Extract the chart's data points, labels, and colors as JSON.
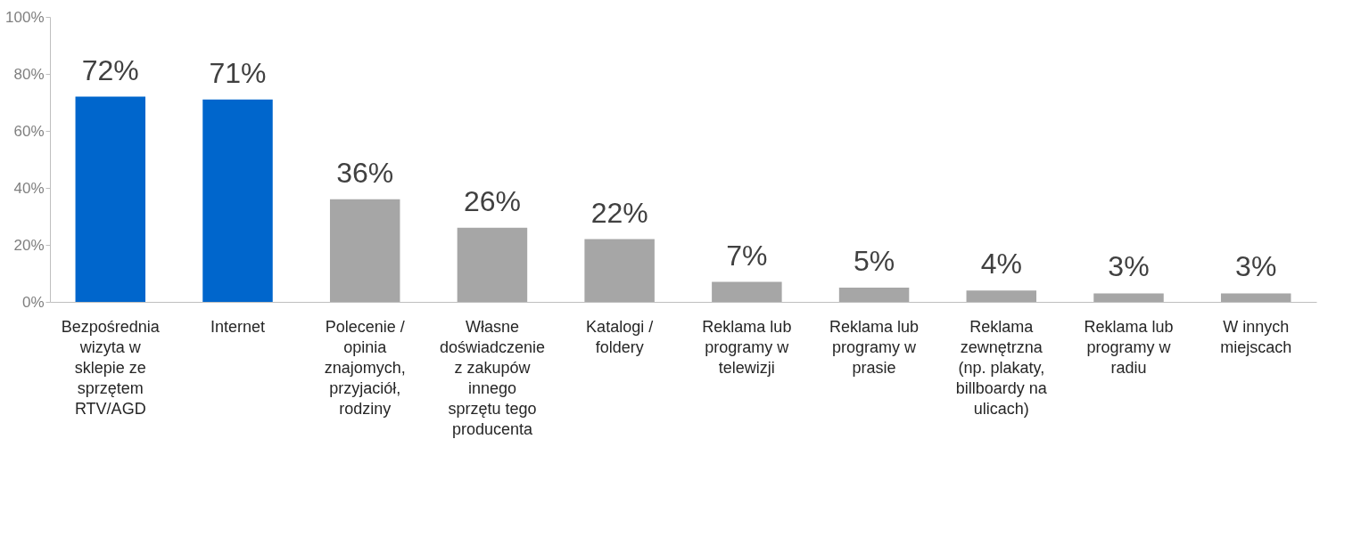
{
  "chart_data": {
    "type": "bar",
    "categories": [
      "Bezpośrednia wizyta w sklepie ze sprzętem RTV/AGD",
      "Internet",
      "Polecenie / opinia znajomych, przyjaciół, rodziny",
      "Własne doświadczenie z zakupów innego sprzętu tego producenta",
      "Katalogi / foldery",
      "Reklama lub programy w telewizji",
      "Reklama lub programy w prasie",
      "Reklama zewnętrzna (np. plakaty, billboardy na ulicach)",
      "Reklama lub programy w radiu",
      "W innych miejscach"
    ],
    "values": [
      72,
      71,
      36,
      26,
      22,
      7,
      5,
      4,
      3,
      3
    ],
    "value_labels": [
      "72%",
      "71%",
      "36%",
      "26%",
      "22%",
      "7%",
      "5%",
      "4%",
      "3%",
      "3%"
    ],
    "colors": [
      "#0066cc",
      "#0066cc",
      "#a6a6a6",
      "#a6a6a6",
      "#a6a6a6",
      "#a6a6a6",
      "#a6a6a6",
      "#a6a6a6",
      "#a6a6a6",
      "#a6a6a6"
    ],
    "ylim": [
      0,
      100
    ],
    "yticks": [
      {
        "value": 0,
        "label": "0%"
      },
      {
        "value": 20,
        "label": "20%"
      },
      {
        "value": 40,
        "label": "40%"
      },
      {
        "value": 60,
        "label": "60%"
      },
      {
        "value": 80,
        "label": "80%"
      },
      {
        "value": 100,
        "label": "100%"
      }
    ],
    "grid": false
  }
}
